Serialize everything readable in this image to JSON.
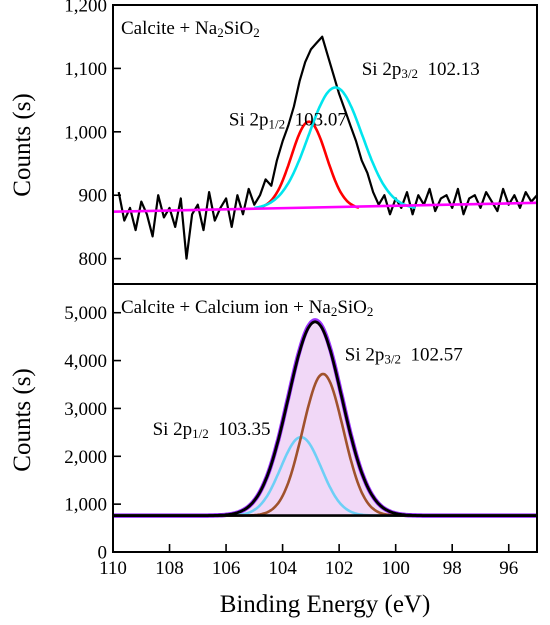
{
  "chart_data": [
    {
      "type": "line",
      "panel": "top",
      "annotation": {
        "main": "Calcite + Na",
        "sub1": "2",
        "mid": "SiO",
        "sub2": "2"
      },
      "ylabel": "Counts (s)",
      "xlim": [
        110,
        95
      ],
      "ylim": [
        760,
        1200
      ],
      "yticks": [
        800,
        900,
        "1,000",
        "1,100",
        "1,200"
      ],
      "ytick_values": [
        800,
        900,
        1000,
        1100,
        1200
      ],
      "grid": false,
      "peak_labels": [
        {
          "prefix": "Si 2p",
          "sub": "1/2",
          "value": "103.07",
          "anchor_x": 105.9,
          "anchor_y": 1010
        },
        {
          "prefix": "Si 2p",
          "sub": "3/2",
          "value": "102.13",
          "anchor_x": 101.2,
          "anchor_y": 1090
        }
      ],
      "series": [
        {
          "name": "",
          "role": "raw-data",
          "color": "#000000",
          "x": [
            109.8,
            109.6,
            109.4,
            109.2,
            109.0,
            108.8,
            108.6,
            108.4,
            108.2,
            108.0,
            107.8,
            107.6,
            107.4,
            107.2,
            107.0,
            106.8,
            106.6,
            106.4,
            106.2,
            106.0,
            105.8,
            105.6,
            105.4,
            105.2,
            105.0,
            104.8,
            104.6,
            104.4,
            104.2,
            104.0,
            103.8,
            103.6,
            103.4,
            103.2,
            103.0,
            102.8,
            102.6,
            102.4,
            102.2,
            102.0,
            101.8,
            101.6,
            101.4,
            101.2,
            101.0,
            100.8,
            100.6,
            100.4,
            100.2,
            100.0,
            99.8,
            99.6,
            99.4,
            99.2,
            99.0,
            98.8,
            98.6,
            98.4,
            98.2,
            98.0,
            97.8,
            97.6,
            97.4,
            97.2,
            97.0,
            96.8,
            96.6,
            96.4,
            96.2,
            96.0,
            95.8,
            95.6,
            95.4,
            95.2,
            95.0
          ],
          "y": [
            905,
            860,
            880,
            845,
            890,
            870,
            835,
            900,
            865,
            880,
            850,
            895,
            800,
            870,
            885,
            845,
            905,
            860,
            880,
            895,
            850,
            900,
            870,
            910,
            885,
            900,
            925,
            915,
            955,
            985,
            1010,
            1040,
            1080,
            1110,
            1130,
            1140,
            1150,
            1120,
            1090,
            1060,
            1035,
            1010,
            985,
            955,
            935,
            905,
            885,
            900,
            870,
            895,
            880,
            905,
            870,
            900,
            885,
            910,
            875,
            895,
            900,
            880,
            910,
            870,
            895,
            900,
            880,
            905,
            890,
            875,
            910,
            885,
            900,
            880,
            905,
            890,
            900
          ]
        },
        {
          "name": "",
          "role": "fit-2p1/2",
          "color": "#ff0000",
          "center": 103.07,
          "amp": 138,
          "sigma": 0.62
        },
        {
          "name": "",
          "role": "fit-2p3/2",
          "color": "#00e5ee",
          "center": 102.13,
          "amp": 192,
          "sigma": 0.95
        },
        {
          "name": "",
          "role": "background",
          "color": "#ff00ff",
          "x": [
            110,
            95
          ],
          "y": [
            874,
            888
          ]
        }
      ]
    },
    {
      "type": "line",
      "panel": "bottom",
      "annotation": {
        "main": "Calcite + Calcium ion + Na",
        "sub1": "2",
        "mid": "SiO",
        "sub2": "2"
      },
      "ylabel": "Counts (s)",
      "xlabel": "Binding Energy (eV)",
      "xlim": [
        110,
        95
      ],
      "ylim": [
        0,
        5600
      ],
      "yticks": [
        "0",
        "1,000",
        "2,000",
        "3,000",
        "4,000",
        "5,000"
      ],
      "ytick_values": [
        0,
        1000,
        2000,
        3000,
        4000,
        5000
      ],
      "xticks": [
        "110",
        "108",
        "106",
        "104",
        "102",
        "100",
        "98",
        "96"
      ],
      "xtick_values": [
        110,
        108,
        106,
        104,
        102,
        100,
        98,
        96
      ],
      "grid": false,
      "peak_labels": [
        {
          "prefix": "Si 2p",
          "sub": "1/2",
          "value": "103.35",
          "anchor_x": 108.6,
          "anchor_y": 2450
        },
        {
          "prefix": "Si 2p",
          "sub": "3/2",
          "value": "102.57",
          "anchor_x": 101.8,
          "anchor_y": 4000
        }
      ],
      "series": [
        {
          "name": "",
          "role": "raw-envelope",
          "color": "#9b30ff",
          "center": 102.85,
          "amp": 4080,
          "sigma": 0.95,
          "baseline": 760
        },
        {
          "name": "",
          "role": "fit-2p1/2",
          "color": "#6ecff6",
          "center": 103.35,
          "amp": 1640,
          "sigma": 0.72,
          "baseline": 760
        },
        {
          "name": "",
          "role": "fit-2p3/2",
          "color": "#a0522d",
          "center": 102.57,
          "amp": 2960,
          "sigma": 0.72,
          "baseline": 760
        },
        {
          "name": "",
          "role": "envelope-fit",
          "color": "#000000",
          "center": 102.85,
          "amp": 4050,
          "sigma": 0.95,
          "baseline": 760
        },
        {
          "name": "",
          "role": "background",
          "color": "#000000",
          "x": [
            110,
            95
          ],
          "y": [
            760,
            760
          ]
        }
      ]
    }
  ]
}
